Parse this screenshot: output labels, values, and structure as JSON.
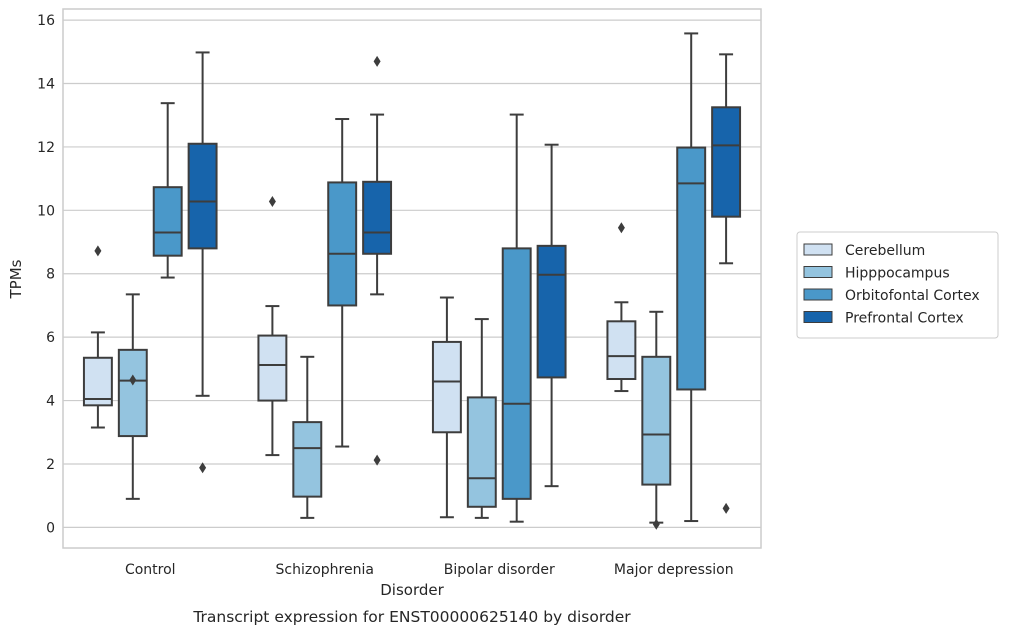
{
  "chart_data": {
    "type": "box",
    "caption": "Transcript expression for ENST00000625140 by disorder",
    "xlabel": "Disorder",
    "ylabel": "TPMs",
    "ylim": [
      -0.65,
      16.35
    ],
    "yticks": [
      0,
      2,
      4,
      6,
      8,
      10,
      12,
      14,
      16
    ],
    "grid": "horizontal",
    "legend_position": "right",
    "categories": [
      "Control",
      "Schizophrenia",
      "Bipolar disorder",
      "Major depression"
    ],
    "series": [
      {
        "name": "Cerebellum",
        "color": "#d0e1f2",
        "boxes": [
          {
            "whisker_low": 3.15,
            "q1": 3.85,
            "median": 4.05,
            "q3": 5.35,
            "whisker_high": 6.15,
            "outliers": [
              8.72
            ]
          },
          {
            "whisker_low": 2.28,
            "q1": 4.0,
            "median": 5.12,
            "q3": 6.05,
            "whisker_high": 6.98,
            "outliers": [
              10.28
            ]
          },
          {
            "whisker_low": 0.32,
            "q1": 3.0,
            "median": 4.6,
            "q3": 5.85,
            "whisker_high": 7.25,
            "outliers": []
          },
          {
            "whisker_low": 4.3,
            "q1": 4.68,
            "median": 5.4,
            "q3": 6.5,
            "whisker_high": 7.1,
            "outliers": [
              9.45
            ]
          }
        ]
      },
      {
        "name": "Hipppocampus",
        "color": "#94c4df",
        "boxes": [
          {
            "whisker_low": 0.9,
            "q1": 2.88,
            "median": 4.63,
            "q3": 5.6,
            "whisker_high": 7.35,
            "outliers": [
              4.65
            ]
          },
          {
            "whisker_low": 0.3,
            "q1": 0.97,
            "median": 2.5,
            "q3": 3.32,
            "whisker_high": 5.38,
            "outliers": []
          },
          {
            "whisker_low": 0.3,
            "q1": 0.65,
            "median": 1.55,
            "q3": 4.1,
            "whisker_high": 6.57,
            "outliers": []
          },
          {
            "whisker_low": 0.15,
            "q1": 1.35,
            "median": 2.93,
            "q3": 5.38,
            "whisker_high": 6.8,
            "outliers": [
              0.1
            ]
          }
        ]
      },
      {
        "name": "Orbitofontal Cortex",
        "color": "#4a98c9",
        "boxes": [
          {
            "whisker_low": 7.88,
            "q1": 8.57,
            "median": 9.3,
            "q3": 10.73,
            "whisker_high": 13.38,
            "outliers": []
          },
          {
            "whisker_low": 2.55,
            "q1": 7.0,
            "median": 8.63,
            "q3": 10.88,
            "whisker_high": 12.88,
            "outliers": []
          },
          {
            "whisker_low": 0.18,
            "q1": 0.9,
            "median": 3.9,
            "q3": 8.8,
            "whisker_high": 13.02,
            "outliers": []
          },
          {
            "whisker_low": 0.2,
            "q1": 4.35,
            "median": 10.85,
            "q3": 11.98,
            "whisker_high": 15.58,
            "outliers": []
          }
        ]
      },
      {
        "name": "Prefrontal Cortex",
        "color": "#1764ab",
        "boxes": [
          {
            "whisker_low": 4.15,
            "q1": 8.8,
            "median": 10.28,
            "q3": 12.1,
            "whisker_high": 14.98,
            "outliers": [
              1.88
            ]
          },
          {
            "whisker_low": 7.35,
            "q1": 8.63,
            "median": 9.3,
            "q3": 10.9,
            "whisker_high": 13.02,
            "outliers": [
              14.7,
              2.12
            ]
          },
          {
            "whisker_low": 1.3,
            "q1": 4.73,
            "median": 7.97,
            "q3": 8.88,
            "whisker_high": 12.07,
            "outliers": []
          },
          {
            "whisker_low": 8.33,
            "q1": 9.8,
            "median": 12.05,
            "q3": 13.25,
            "whisker_high": 14.92,
            "outliers": [
              0.6
            ]
          }
        ]
      }
    ]
  }
}
